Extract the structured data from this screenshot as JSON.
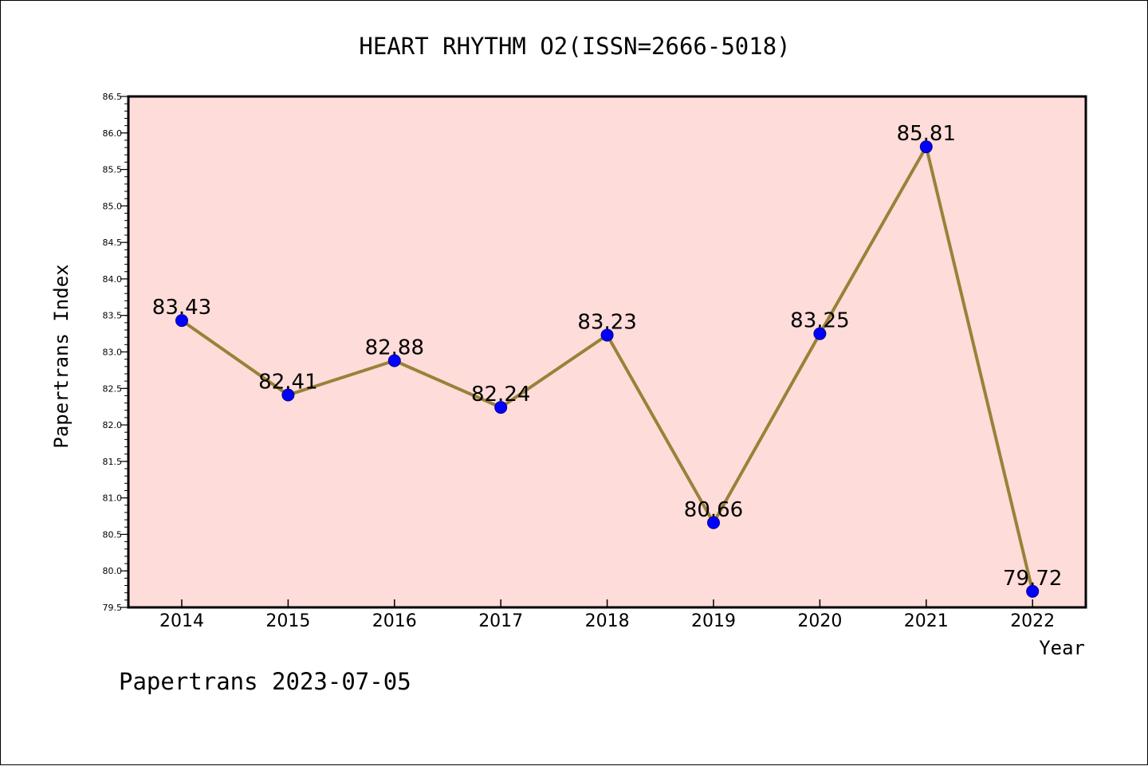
{
  "chart_data": {
    "type": "line",
    "title": "HEART RHYTHM O2(ISSN=2666-5018)",
    "xlabel": "Year",
    "ylabel": "Papertrans Index",
    "categories": [
      "2014",
      "2015",
      "2016",
      "2017",
      "2018",
      "2019",
      "2020",
      "2021",
      "2022"
    ],
    "series": [
      {
        "values": [
          83.43,
          82.41,
          82.88,
          82.24,
          83.23,
          80.66,
          83.25,
          85.81,
          79.72
        ],
        "labels": [
          "83.43",
          "82.41",
          "82.88",
          "82.24",
          "83.23",
          "80.66",
          "83.25",
          "85.81",
          "79.72"
        ]
      }
    ],
    "ylim": [
      79.5,
      86.5
    ],
    "yticks": [
      "79.5",
      "80.0",
      "80.5",
      "81.0",
      "81.5",
      "82.0",
      "82.5",
      "83.0",
      "83.5",
      "84.0",
      "84.5",
      "85.0",
      "85.5",
      "86.0",
      "86.5"
    ],
    "grid": false,
    "colors": {
      "plot_background": "#fddcd9",
      "line": "#998238",
      "marker": "#0000ff"
    }
  },
  "footer": {
    "caption": "Papertrans 2023-07-05"
  }
}
